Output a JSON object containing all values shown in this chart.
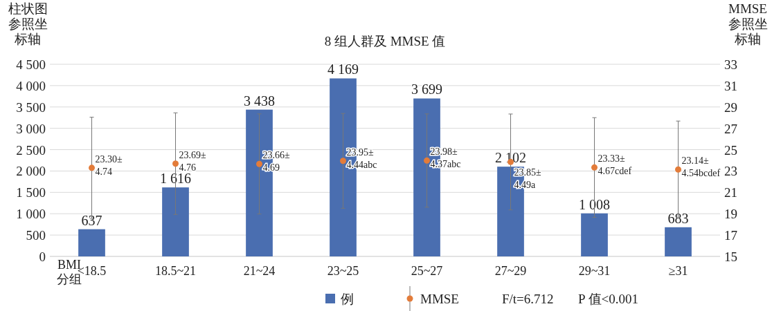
{
  "chart_data": {
    "type": "bar",
    "title": "8 组人群及 MMSE 值",
    "xlabel": "BMI\n分组",
    "ylabel": "柱状图参照坐标轴",
    "y2label": "MMSE参照坐标轴",
    "categories": [
      "<18.5",
      "18.5~21",
      "21~24",
      "23~25",
      "25~27",
      "27~29",
      "29~31",
      "≥31"
    ],
    "series": [
      {
        "name": "例",
        "color": "#4a6eb0",
        "values": [
          637,
          1616,
          3438,
          4169,
          3699,
          2102,
          1008,
          683
        ],
        "value_labels": [
          "637",
          "1 616",
          "3 438",
          "4 169",
          "3 699",
          "2 102",
          "1 008",
          "683"
        ]
      },
      {
        "name": "MMSE",
        "type": "scatter",
        "axis": "y2",
        "color": "#e37c3a",
        "marker": "circle",
        "values": [
          23.3,
          23.69,
          23.66,
          23.95,
          23.98,
          23.85,
          23.33,
          23.14
        ],
        "errors": [
          4.74,
          4.76,
          4.69,
          4.44,
          4.37,
          4.49,
          4.67,
          4.54
        ],
        "value_labels": [
          "23.30±\n4.74",
          "23.69±\n4.76",
          "23.66±\n4.69",
          "23.95±\n4.44abc",
          "23.98±\n4.37abc",
          "23.85±\n4.49a",
          "23.33±\n4.67cdef",
          "23.14±\n4.54bcdef"
        ]
      }
    ],
    "ylim": [
      0,
      4500
    ],
    "yticks": [
      0,
      500,
      {
        "value": 1000,
        "label": "1 000"
      },
      {
        "value": 1500,
        "label": "1 500"
      },
      {
        "value": 2000,
        "label": "2 000"
      },
      {
        "value": 2500,
        "label": "2 500"
      },
      {
        "value": 3000,
        "label": "3 000"
      },
      {
        "value": 3500,
        "label": "3 500"
      },
      {
        "value": 4000,
        "label": "4 000"
      },
      {
        "value": 4500,
        "label": "4 500"
      }
    ],
    "y2lim": [
      15,
      33
    ],
    "y2ticks": [
      15,
      17,
      19,
      21,
      23,
      25,
      27,
      29,
      31,
      33
    ],
    "grid": "y",
    "legend": "bottom",
    "annotations": [
      "F/t=6.712",
      "P 值<0.001"
    ]
  }
}
